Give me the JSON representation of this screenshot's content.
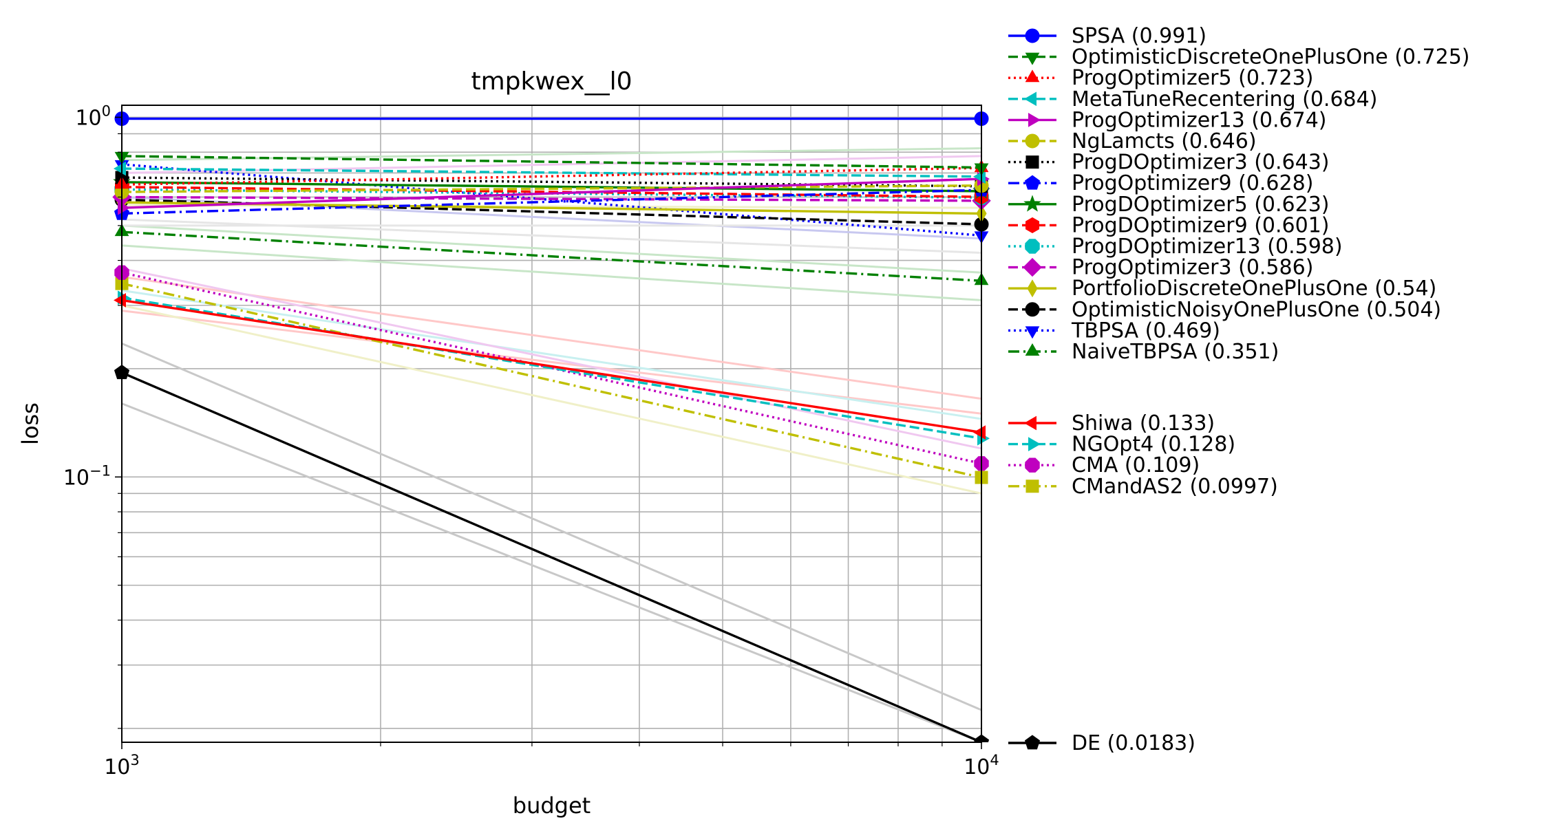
{
  "chart_data": {
    "type": "line",
    "title": "tmpkwex__l0",
    "xlabel": "budget",
    "ylabel": "loss",
    "xscale": "log",
    "yscale": "log",
    "xlim": [
      1000,
      10000
    ],
    "ylim": [
      0.0183,
      1.08
    ],
    "x_ticks": [
      {
        "value": 1000,
        "base": "10",
        "exp": "3"
      },
      {
        "value": 10000,
        "base": "10",
        "exp": "4"
      }
    ],
    "y_ticks": [
      {
        "value": 1.0,
        "base": "10",
        "exp": "0"
      },
      {
        "value": 0.1,
        "base": "10",
        "exp": "−1"
      }
    ],
    "grid": true,
    "legend_position": "outside-right",
    "x": [
      1000,
      10000
    ],
    "series": [
      {
        "name": "SPSA (0.991)",
        "color": "#0000ff",
        "dash": "solid",
        "marker": "circle",
        "values": [
          0.991,
          0.991
        ]
      },
      {
        "name": "OptimisticDiscreteOnePlusOne (0.725)",
        "color": "#008000",
        "dash": "dashed",
        "marker": "triangle-down",
        "values": [
          0.78,
          0.725
        ]
      },
      {
        "name": "ProgOptimizer5 (0.723)",
        "color": "#ff0000",
        "dash": "dotted",
        "marker": "triangle-up",
        "values": [
          0.65,
          0.723
        ]
      },
      {
        "name": "MetaTuneRecentering (0.684)",
        "color": "#00bfbf",
        "dash": "dashed",
        "marker": "triangle-left",
        "values": [
          0.72,
          0.684
        ]
      },
      {
        "name": "ProgOptimizer13 (0.674)",
        "color": "#bf00bf",
        "dash": "solid",
        "marker": "triangle-right",
        "values": [
          0.56,
          0.674
        ]
      },
      {
        "name": "NgLamcts (0.646)",
        "color": "#bfbf00",
        "dash": "dashed",
        "marker": "circle",
        "values": [
          0.62,
          0.646
        ]
      },
      {
        "name": "ProgDOptimizer3 (0.643)",
        "color": "#000000",
        "dash": "dotted",
        "marker": "square",
        "values": [
          0.68,
          0.643
        ]
      },
      {
        "name": "ProgOptimizer9 (0.628)",
        "color": "#0000ff",
        "dash": "dashdot",
        "marker": "pentagon",
        "values": [
          0.54,
          0.628
        ]
      },
      {
        "name": "ProgDOptimizer5 (0.623)",
        "color": "#008000",
        "dash": "solid",
        "marker": "star",
        "values": [
          0.66,
          0.623
        ]
      },
      {
        "name": "ProgDOptimizer9 (0.601)",
        "color": "#ff0000",
        "dash": "dashed",
        "marker": "hexagon",
        "values": [
          0.64,
          0.601
        ]
      },
      {
        "name": "ProgDOptimizer13 (0.598)",
        "color": "#00bfbf",
        "dash": "dotted",
        "marker": "octagon",
        "values": [
          0.63,
          0.598
        ]
      },
      {
        "name": "ProgOptimizer3 (0.586)",
        "color": "#bf00bf",
        "dash": "dashed",
        "marker": "diamond",
        "values": [
          0.6,
          0.586
        ]
      },
      {
        "name": "PortfolioDiscreteOnePlusOne (0.54)",
        "color": "#bfbf00",
        "dash": "solid",
        "marker": "thin-diamond",
        "values": [
          0.58,
          0.54
        ]
      },
      {
        "name": "OptimisticNoisyOnePlusOne (0.504)",
        "color": "#000000",
        "dash": "dashed",
        "marker": "circle",
        "values": [
          0.59,
          0.504
        ]
      },
      {
        "name": "TBPSA (0.469)",
        "color": "#0000ff",
        "dash": "dotted",
        "marker": "triangle-down",
        "values": [
          0.74,
          0.469
        ]
      },
      {
        "name": "NaiveTBPSA (0.351)",
        "color": "#008000",
        "dash": "dashdot",
        "marker": "triangle-up",
        "values": [
          0.48,
          0.351
        ]
      },
      {
        "name": "Shiwa (0.133)",
        "color": "#ff0000",
        "dash": "solid",
        "marker": "triangle-left",
        "values": [
          0.31,
          0.133
        ]
      },
      {
        "name": "NGOpt4 (0.128)",
        "color": "#00bfbf",
        "dash": "dashed",
        "marker": "triangle-right",
        "values": [
          0.315,
          0.128
        ]
      },
      {
        "name": "CMA (0.109)",
        "color": "#bf00bf",
        "dash": "dotted",
        "marker": "octagon",
        "values": [
          0.37,
          0.109
        ]
      },
      {
        "name": "CMandAS2 (0.0997)",
        "color": "#bfbf00",
        "dash": "dashdot",
        "marker": "square",
        "values": [
          0.345,
          0.0997
        ]
      },
      {
        "name": "DE (0.0183)",
        "color": "#000000",
        "dash": "solid",
        "marker": "pentagon",
        "values": [
          0.195,
          0.0183
        ]
      }
    ],
    "faint_series": [
      {
        "color": "#c8c8c8",
        "values": [
          0.235,
          0.0225
        ]
      },
      {
        "color": "#c8c8c8",
        "values": [
          0.16,
          0.0183
        ]
      },
      {
        "color": "#ffc8c8",
        "values": [
          0.36,
          0.165
        ]
      },
      {
        "color": "#ffc8c8",
        "values": [
          0.29,
          0.15
        ]
      },
      {
        "color": "#c8f0f0",
        "values": [
          0.33,
          0.145
        ]
      },
      {
        "color": "#f0c8f0",
        "values": [
          0.38,
          0.12
        ]
      },
      {
        "color": "#f0f0c8",
        "values": [
          0.3,
          0.09
        ]
      },
      {
        "color": "#c8e6c8",
        "values": [
          0.44,
          0.31
        ]
      },
      {
        "color": "#c8e6c8",
        "values": [
          0.5,
          0.37
        ]
      },
      {
        "color": "#c8c8f0",
        "values": [
          0.6,
          0.46
        ]
      },
      {
        "color": "#e6e6e6",
        "values": [
          0.52,
          0.42
        ]
      },
      {
        "color": "#f0c8f0",
        "values": [
          0.7,
          0.78
        ]
      },
      {
        "color": "#c8e6c8",
        "values": [
          0.76,
          0.82
        ]
      },
      {
        "color": "#e6e6e6",
        "values": [
          0.5,
          0.5
        ]
      },
      {
        "color": "#f0f0c8",
        "values": [
          0.57,
          0.56
        ]
      }
    ]
  }
}
